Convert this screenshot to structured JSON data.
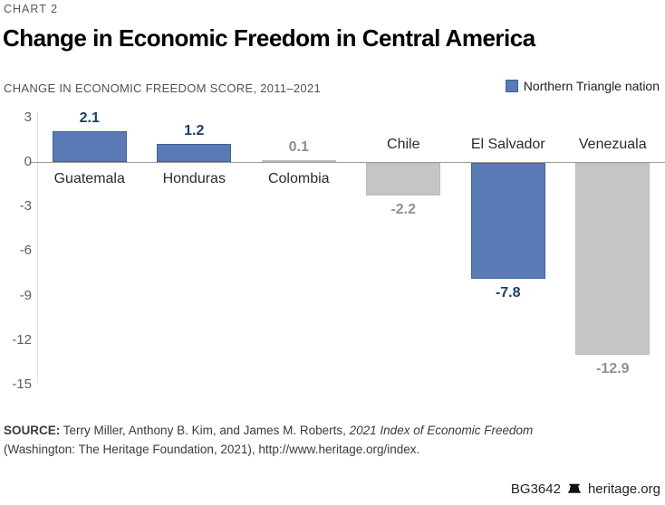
{
  "header": {
    "kicker": "CHART 2",
    "title": "Change in Economic Freedom in Central America",
    "subtitle": "CHANGE IN ECONOMIC FREEDOM SCORE, 2011–2021",
    "legend": {
      "label": "Northern Triangle nation",
      "color": "#5A7AB5"
    }
  },
  "chart_data": {
    "type": "bar",
    "title": "Change in Economic Freedom in Central America",
    "xlabel": "",
    "ylabel": "Change in Economic Freedom Score, 2011–2021",
    "categories": [
      "Guatemala",
      "Honduras",
      "Colombia",
      "Chile",
      "El Salvador",
      "Venezuala"
    ],
    "values": [
      2.1,
      1.2,
      0.1,
      -2.2,
      -7.8,
      -12.9
    ],
    "value_labels": [
      "2.1",
      "1.2",
      "0.1",
      "-2.2",
      "-7.8",
      "-12.9"
    ],
    "highlight": [
      true,
      true,
      false,
      false,
      true,
      false
    ],
    "ylim": [
      -15,
      3
    ],
    "yticks": [
      3,
      0,
      -3,
      -6,
      -9,
      -12,
      -15
    ],
    "grid": false,
    "legend_position": "top-right",
    "legend": [
      {
        "name": "Northern Triangle nation",
        "color": "#5A7AB5"
      }
    ],
    "colors": {
      "highlight_fill": "#5A7AB5",
      "highlight_border": "#3D61A2",
      "default_fill": "#C4C5C7",
      "default_border": "#BABBBE",
      "label_highlight": "#1D3E6E",
      "label_default": "#8E9093"
    }
  },
  "footer": {
    "source_label": "SOURCE:",
    "source_text": " Terry Miller, Anthony B. Kim, and James M. Roberts, ",
    "source_italic": "2021 Index of Economic Freedom",
    "source_line2": "(Washington: The Heritage Foundation, 2021), http://www.heritage.org/index.",
    "report_id": "BG3642",
    "site": "heritage.org"
  }
}
